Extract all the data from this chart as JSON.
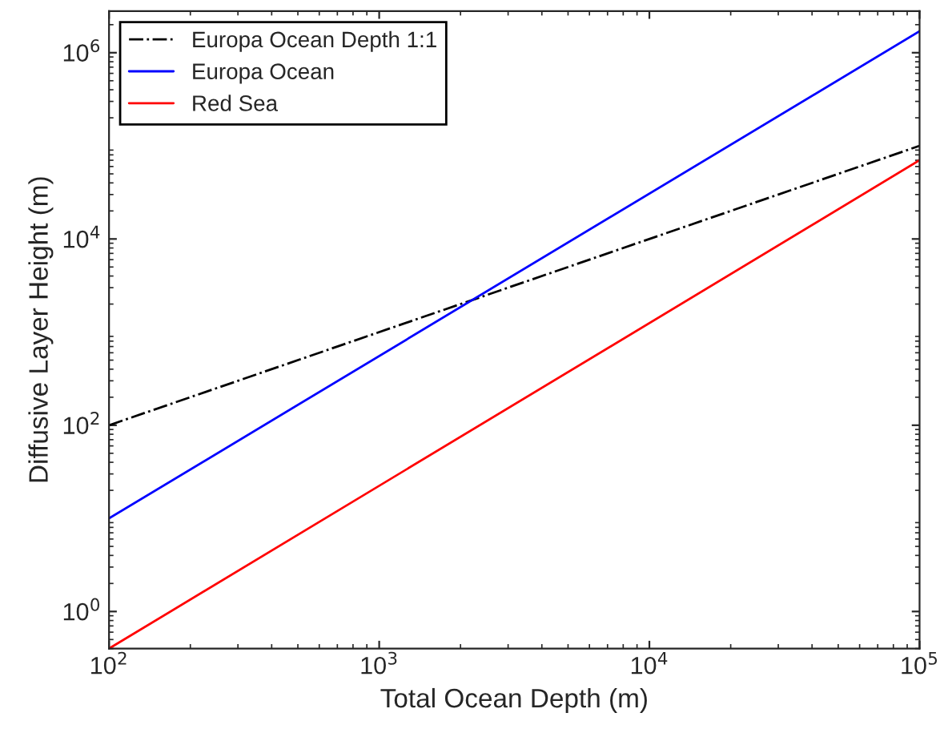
{
  "chart_data": {
    "type": "line",
    "xlabel": "Total Ocean Depth (m)",
    "ylabel": "Diffusive Layer Height (m)",
    "log": "xy",
    "legend": "top left",
    "grid": false,
    "x": [
      100,
      100000
    ],
    "series": [
      {
        "name": "Europa Ocean Depth 1:1",
        "color": "#000000",
        "line_style": "dashdot",
        "values": [
          100,
          100000
        ]
      },
      {
        "name": "Europa Ocean",
        "color": "#0000ff",
        "line_style": "solid",
        "values": [
          10,
          1700000
        ]
      },
      {
        "name": "Red Sea",
        "color": "#ff0000",
        "line_style": "solid",
        "values": [
          0.4,
          70000
        ]
      }
    ],
    "xlim": [
      100,
      100000
    ],
    "ylim": [
      0.4,
      2800000
    ],
    "xticks": [
      {
        "value": 100,
        "label": "10$^{2}$"
      },
      {
        "value": 1000,
        "label": "10$^{3}$"
      },
      {
        "value": 10000,
        "label": "10$^{4}$"
      },
      {
        "value": 100000,
        "label": "10$^{5}$"
      }
    ],
    "yticks": [
      {
        "value": 1,
        "label": "10$^{0}$"
      },
      {
        "value": 100,
        "label": "10$^{2}$"
      },
      {
        "value": 10000,
        "label": "10$^{4}$"
      },
      {
        "value": 1000000,
        "label": "10$^{6}$"
      }
    ]
  }
}
